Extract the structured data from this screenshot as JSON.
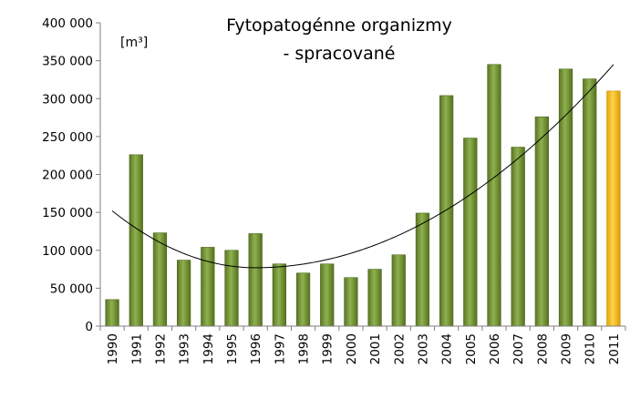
{
  "chart_data": {
    "type": "bar",
    "title_lines": [
      "Fytopatogénne organizmy",
      "- spracované"
    ],
    "unit": "[m³]",
    "xlabel": "",
    "ylabel": "",
    "ylim": [
      0,
      400000
    ],
    "ytick_values": [
      0,
      50000,
      100000,
      150000,
      200000,
      250000,
      300000,
      350000,
      400000
    ],
    "ytick_labels": [
      "0",
      "50 000",
      "100 000",
      "150 000",
      "200 000",
      "250 000",
      "300 000",
      "350 000",
      "400 000"
    ],
    "categories": [
      "1990",
      "1991",
      "1992",
      "1993",
      "1994",
      "1995",
      "1996",
      "1997",
      "1998",
      "1999",
      "2000",
      "2001",
      "2002",
      "2003",
      "2004",
      "2005",
      "2006",
      "2007",
      "2008",
      "2009",
      "2010",
      "2011"
    ],
    "values": [
      35000,
      226000,
      123000,
      87000,
      104000,
      100000,
      122000,
      82000,
      70000,
      82000,
      64000,
      75000,
      94000,
      149000,
      304000,
      248000,
      345000,
      236000,
      276000,
      339000,
      326000,
      310000
    ],
    "highlight_index": 21,
    "colors": {
      "bar": "#77933c",
      "bar_highlight": "#ffc000",
      "trendline": "#000000"
    },
    "trendline": {
      "type": "polynomial",
      "start_value": 152000,
      "min_value": 77000,
      "min_category": "1996",
      "end_value": 345000
    },
    "grid": false,
    "legend": "none"
  }
}
